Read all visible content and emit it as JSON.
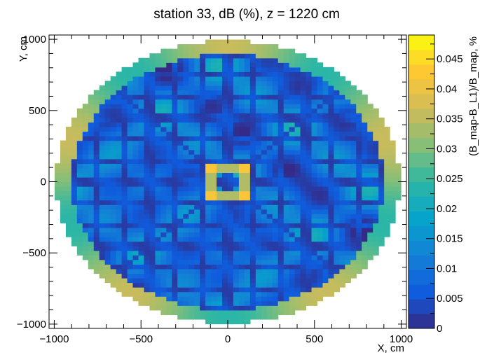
{
  "chart_data": {
    "type": "heatmap",
    "title": "station 33, dB (%), z = 1220 cm",
    "xlabel": "X, cm",
    "ylabel": "Y, cm",
    "zlabel": "(B_map-B_L1)/B_map, %",
    "xlim": [
      -1030,
      1030
    ],
    "ylim": [
      -1030,
      1030
    ],
    "zlim": [
      0,
      0.049
    ],
    "region_radius": 990,
    "grid_bins": 64,
    "x_ticks": [
      -1000,
      -500,
      0,
      500,
      1000
    ],
    "x_tick_labels": [
      "−1000",
      "−500",
      "0",
      "500",
      "1000"
    ],
    "y_ticks": [
      -1000,
      -500,
      0,
      500,
      1000
    ],
    "y_tick_labels": [
      "−1000",
      "−500",
      "0",
      "500",
      "1000"
    ],
    "z_ticks": [
      0,
      0.005,
      0.01,
      0.015,
      0.02,
      0.025,
      0.03,
      0.035,
      0.04,
      0.045
    ],
    "z_tick_labels": [
      "0",
      "0.005",
      "0.01",
      "0.015",
      "0.02",
      "0.025",
      "0.03",
      "0.035",
      "0.04",
      "0.045"
    ],
    "colormap": [
      "#352a87",
      "#0f5cdd",
      "#1481d6",
      "#06a4ca",
      "#2eb7a4",
      "#87bf77",
      "#d1bb59",
      "#fec832",
      "#f9fb0e"
    ],
    "features": {
      "central_square_half_width": 100,
      "central_square_level": 0.042,
      "edge_ring_level": 0.03,
      "background_level": 0.01,
      "grid_line_level": 0.004,
      "grid_line_spacing": 150
    }
  }
}
